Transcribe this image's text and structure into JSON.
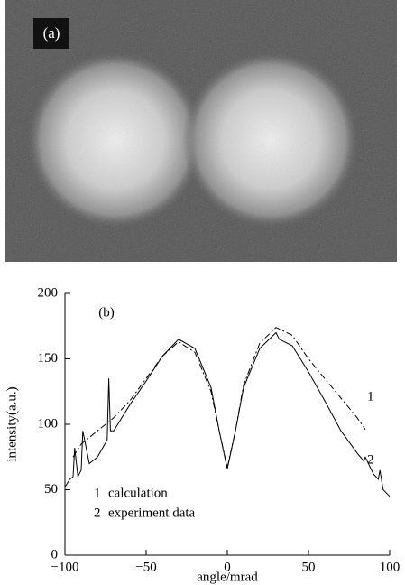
{
  "image": {
    "label": "(a)"
  },
  "chart_data": {
    "type": "line",
    "panel_label": "(b)",
    "xlabel": "angle/mrad",
    "ylabel": "intensity(a.u.)",
    "xlim": [
      -100,
      100
    ],
    "ylim": [
      0,
      200
    ],
    "xticks": [
      {
        "value": -100,
        "label": "−100"
      },
      {
        "value": -50,
        "label": "−50"
      },
      0,
      50,
      100
    ],
    "yticks": [
      0,
      50,
      100,
      150,
      200
    ],
    "series": [
      {
        "name": "calculation",
        "label": "1",
        "color": "#000000",
        "line_style": "dash-dot",
        "x": [
          -95,
          -90,
          -80,
          -70,
          -60,
          -50,
          -40,
          -30,
          -20,
          -10,
          -5,
          0,
          5,
          10,
          20,
          30,
          40,
          50,
          60,
          70,
          80,
          85
        ],
        "values": [
          75,
          85,
          95,
          105,
          118,
          135,
          152,
          163,
          155,
          125,
          95,
          67,
          95,
          130,
          162,
          174,
          168,
          150,
          135,
          120,
          105,
          96
        ]
      },
      {
        "name": "experiment data",
        "label": "2",
        "color": "#000000",
        "line_style": "solid",
        "x": [
          -100,
          -97,
          -95,
          -94,
          -92,
          -90,
          -89,
          -85,
          -80,
          -74,
          -73,
          -72,
          -70,
          -60,
          -50,
          -40,
          -30,
          -20,
          -10,
          -5,
          0,
          5,
          10,
          20,
          30,
          32,
          40,
          50,
          60,
          70,
          80,
          84,
          85,
          90,
          93,
          94,
          96,
          100
        ],
        "values": [
          52,
          58,
          60,
          82,
          60,
          65,
          95,
          70,
          75,
          88,
          135,
          95,
          95,
          115,
          133,
          152,
          165,
          158,
          128,
          95,
          66,
          95,
          128,
          158,
          170,
          165,
          160,
          140,
          118,
          95,
          78,
          72,
          75,
          62,
          58,
          65,
          50,
          45
        ]
      }
    ]
  }
}
